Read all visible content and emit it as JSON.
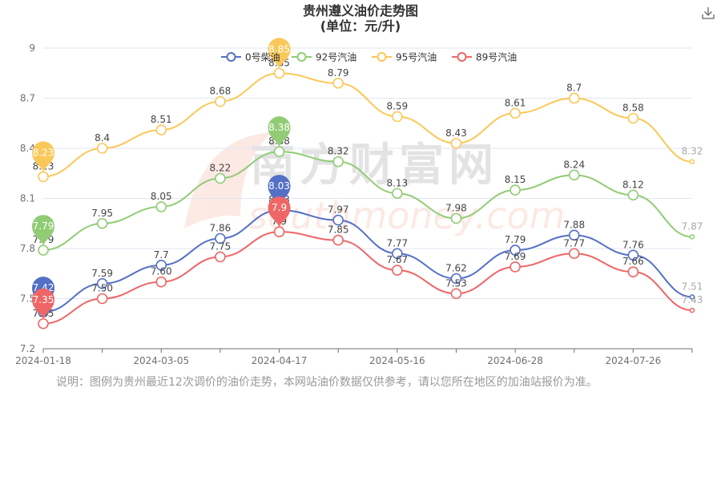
{
  "page": {
    "title_line1": "贵州遵义油价走势图",
    "title_line2": "(单位：元/升)",
    "watermark_cn": "南方财富网",
    "watermark_en": "southmoney.com",
    "note": "说明：图例为贵州最近12次调价的油价走势，本网站油价数据仅供参考，请以您所在地区的加油站报价为准。",
    "download_icon": "download-icon"
  },
  "chart_data": {
    "type": "line",
    "title": "贵州遵义油价走势图",
    "subtitle": "(单位：元/升)",
    "xlabel": "",
    "ylabel": "",
    "ylim": [
      7.2,
      9.0
    ],
    "yticks": [
      "7.2",
      "7.5",
      "7.8",
      "8.1",
      "8.4",
      "8.7",
      "9"
    ],
    "xticks": [
      "2024-01-18",
      "2024-03-05",
      "2024-04-17",
      "2024-05-16",
      "2024-06-28",
      "2024-07-26"
    ],
    "xtick_index": [
      0,
      2,
      4,
      6,
      8,
      10
    ],
    "grid": "horizontal",
    "legend": "top-center",
    "smooth": true,
    "series": [
      {
        "name": "0号柴油",
        "color": "#5470c6",
        "values": [
          7.42,
          7.59,
          7.7,
          7.86,
          8.03,
          7.97,
          7.77,
          7.62,
          7.79,
          7.88,
          7.76,
          7.51
        ],
        "labels": [
          "7.42",
          "7.59",
          "7.7",
          "7.86",
          "8.03",
          "7.97",
          "7.77",
          "7.62",
          "7.79",
          "7.88",
          "7.76",
          "7.51"
        ],
        "max_index": 4,
        "min_index": 0
      },
      {
        "name": "92号汽油",
        "color": "#91cc75",
        "values": [
          7.79,
          7.95,
          8.05,
          8.22,
          8.38,
          8.32,
          8.13,
          7.98,
          8.15,
          8.24,
          8.12,
          7.87
        ],
        "labels": [
          "7.79",
          "7.95",
          "8.05",
          "8.22",
          "8.38",
          "8.32",
          "8.13",
          "7.98",
          "8.15",
          "8.24",
          "8.12",
          "7.87"
        ],
        "max_index": 4,
        "min_index": 0
      },
      {
        "name": "95号汽油",
        "color": "#fac858",
        "values": [
          8.23,
          8.4,
          8.51,
          8.68,
          8.85,
          8.79,
          8.59,
          8.43,
          8.61,
          8.7,
          8.58,
          8.32
        ],
        "labels": [
          "8.23",
          "8.4",
          "8.51",
          "8.68",
          "8.85",
          "8.79",
          "8.59",
          "8.43",
          "8.61",
          "8.7",
          "8.58",
          "8.32"
        ],
        "max_index": 4,
        "min_index": 0
      },
      {
        "name": "89号汽油",
        "color": "#ee6666",
        "values": [
          7.35,
          7.5,
          7.6,
          7.75,
          7.9,
          7.85,
          7.67,
          7.53,
          7.69,
          7.77,
          7.66,
          7.43
        ],
        "labels": [
          "7.35",
          "7.50",
          "7.60",
          "7.75",
          "7.9",
          "7.85",
          "7.67",
          "7.53",
          "7.69",
          "7.77",
          "7.66",
          "7.43"
        ],
        "max_index": 4,
        "min_index": 0
      }
    ]
  }
}
